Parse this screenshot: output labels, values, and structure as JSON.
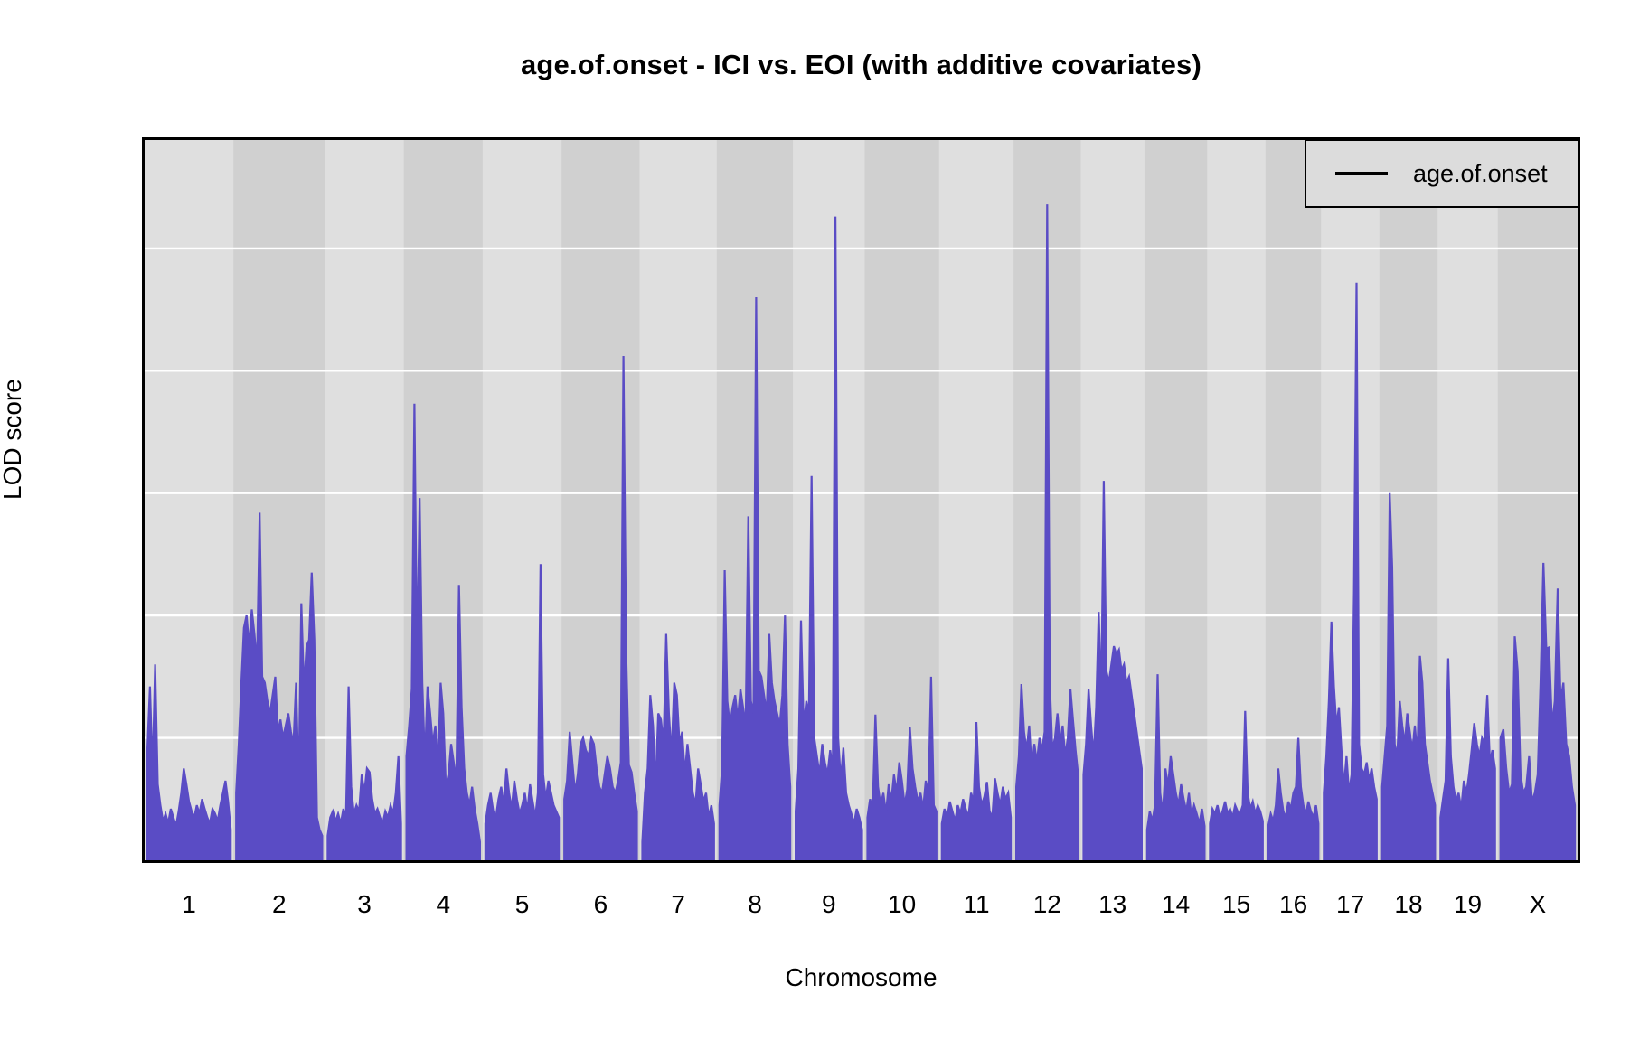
{
  "title": "age.of.onset - ICI vs. EOI (with additive covariates)",
  "legend": {
    "label": "age.of.onset"
  },
  "axes": {
    "y_label": "LOD score",
    "x_label": "Chromosome",
    "y_ticks": [
      "0",
      "1",
      "2",
      "3",
      "4",
      "5"
    ]
  },
  "colors": {
    "series": "#5a4cc5",
    "band_light": "#dfdfdf",
    "band_dark": "#d0d0d0",
    "gridline": "#ffffff",
    "plot_border": "#000000",
    "legend_bg": "#dcdcdc",
    "text": "#000000"
  },
  "chart_data": {
    "type": "line",
    "title": "age.of.onset - ICI vs. EOI (with additive covariates)",
    "xlabel": "Chromosome",
    "ylabel": "LOD score",
    "ylim": [
      0,
      5.885
    ],
    "y_gridlines": [
      1,
      2,
      3,
      4,
      5
    ],
    "grid": "horizontal white lines on alternating gray chromosome bands",
    "legend_position": "top-right",
    "series_name": "age.of.onset",
    "chromosomes": [
      {
        "name": "1",
        "rel_width": 99,
        "lod": [
          0.9,
          1.42,
          0.7,
          1.6,
          0.62,
          0.45,
          0.32,
          0.38,
          0.3,
          0.42,
          0.35,
          0.28,
          0.4,
          0.55,
          0.75,
          0.62,
          0.48,
          0.4,
          0.35,
          0.45,
          0.38,
          0.5,
          0.42,
          0.35,
          0.3,
          0.42,
          0.38,
          0.32,
          0.45,
          0.55,
          0.65,
          0.48,
          0.25
        ]
      },
      {
        "name": "2",
        "rel_width": 102,
        "lod": [
          0.55,
          0.95,
          1.45,
          1.9,
          2.0,
          1.75,
          2.05,
          1.85,
          1.6,
          2.84,
          1.5,
          1.45,
          1.3,
          1.2,
          1.35,
          1.5,
          1.05,
          1.15,
          1.0,
          1.1,
          1.2,
          1.05,
          0.95,
          1.45,
          0.6,
          2.1,
          1.4,
          1.75,
          1.8,
          2.35,
          1.8,
          0.35,
          0.25,
          0.2
        ]
      },
      {
        "name": "3",
        "rel_width": 88,
        "lod": [
          0.2,
          0.35,
          0.4,
          0.32,
          0.38,
          0.3,
          0.42,
          0.35,
          1.42,
          0.6,
          0.38,
          0.45,
          0.4,
          0.7,
          0.55,
          0.75,
          0.72,
          0.5,
          0.38,
          0.42,
          0.35,
          0.3,
          0.4,
          0.35,
          0.45,
          0.38,
          0.55,
          0.85,
          0.3
        ]
      },
      {
        "name": "4",
        "rel_width": 88,
        "lod": [
          0.85,
          1.1,
          1.4,
          3.73,
          1.6,
          2.96,
          1.45,
          0.8,
          1.42,
          1.2,
          0.95,
          1.1,
          0.75,
          1.45,
          1.2,
          0.6,
          0.7,
          0.95,
          0.8,
          0.65,
          2.25,
          1.25,
          0.75,
          0.55,
          0.45,
          0.6,
          0.42,
          0.3,
          0.15
        ]
      },
      {
        "name": "5",
        "rel_width": 88,
        "lod": [
          0.3,
          0.45,
          0.55,
          0.4,
          0.35,
          0.5,
          0.6,
          0.45,
          0.75,
          0.55,
          0.42,
          0.65,
          0.5,
          0.38,
          0.45,
          0.55,
          0.4,
          0.62,
          0.48,
          0.35,
          0.55,
          2.42,
          0.7,
          0.5,
          0.65,
          0.55,
          0.45,
          0.4,
          0.35
        ]
      },
      {
        "name": "6",
        "rel_width": 87,
        "lod": [
          0.5,
          0.65,
          1.05,
          0.8,
          0.55,
          0.7,
          0.95,
          1.0,
          0.9,
          0.85,
          1.0,
          0.95,
          0.75,
          0.6,
          0.55,
          0.7,
          0.85,
          0.75,
          0.6,
          0.55,
          0.65,
          0.8,
          4.12,
          1.7,
          0.78,
          0.72,
          0.55,
          0.4
        ]
      },
      {
        "name": "7",
        "rel_width": 86,
        "lod": [
          0.15,
          0.55,
          0.75,
          1.35,
          1.1,
          0.6,
          1.2,
          1.15,
          0.95,
          1.85,
          1.2,
          0.85,
          1.45,
          1.35,
          0.95,
          1.05,
          0.7,
          0.95,
          0.75,
          0.55,
          0.45,
          0.75,
          0.62,
          0.48,
          0.55,
          0.35,
          0.45,
          0.3
        ]
      },
      {
        "name": "8",
        "rel_width": 85,
        "lod": [
          0.45,
          0.75,
          2.37,
          1.3,
          1.1,
          1.25,
          1.35,
          1.15,
          1.4,
          1.25,
          1.1,
          2.81,
          1.3,
          1.2,
          4.6,
          1.55,
          1.5,
          1.35,
          1.2,
          1.85,
          1.45,
          1.3,
          1.2,
          1.1,
          1.35,
          2.0,
          0.95,
          0.6
        ]
      },
      {
        "name": "9",
        "rel_width": 80,
        "lod": [
          0.4,
          0.75,
          1.96,
          1.1,
          1.3,
          1.2,
          3.14,
          1.0,
          0.85,
          0.7,
          0.95,
          0.8,
          0.7,
          0.9,
          0.75,
          5.26,
          1.0,
          0.65,
          0.92,
          0.55,
          0.45,
          0.38,
          0.3,
          0.42,
          0.35,
          0.25
        ]
      },
      {
        "name": "10",
        "rel_width": 83,
        "lod": [
          0.35,
          0.5,
          0.42,
          1.19,
          0.6,
          0.45,
          0.55,
          0.38,
          0.62,
          0.48,
          0.7,
          0.55,
          0.8,
          0.65,
          0.45,
          0.58,
          1.09,
          0.75,
          0.6,
          0.48,
          0.55,
          0.42,
          0.65,
          0.55,
          1.5,
          0.45,
          0.4
        ]
      },
      {
        "name": "11",
        "rel_width": 83,
        "lod": [
          0.3,
          0.42,
          0.35,
          0.48,
          0.4,
          0.32,
          0.45,
          0.38,
          0.5,
          0.42,
          0.35,
          0.55,
          0.48,
          1.13,
          0.6,
          0.45,
          0.52,
          0.64,
          0.4,
          0.35,
          0.67,
          0.55,
          0.45,
          0.6,
          0.5,
          0.55,
          0.35
        ]
      },
      {
        "name": "12",
        "rel_width": 75,
        "lod": [
          0.6,
          0.85,
          1.44,
          1.05,
          0.9,
          1.1,
          0.75,
          0.95,
          0.8,
          1.0,
          0.9,
          1.05,
          5.36,
          1.45,
          0.9,
          1.0,
          1.2,
          0.95,
          1.1,
          0.85,
          1.0,
          1.4,
          1.15,
          0.9,
          0.7
        ]
      },
      {
        "name": "13",
        "rel_width": 71,
        "lod": [
          0.7,
          0.95,
          1.4,
          1.1,
          0.85,
          1.25,
          2.03,
          1.3,
          3.1,
          1.55,
          1.45,
          1.6,
          1.75,
          1.68,
          1.72,
          1.55,
          1.6,
          1.45,
          1.5,
          1.35,
          1.2,
          1.05,
          0.9,
          0.75
        ]
      },
      {
        "name": "14",
        "rel_width": 70,
        "lod": [
          0.25,
          0.4,
          0.32,
          0.45,
          1.52,
          0.55,
          0.38,
          0.75,
          0.6,
          0.85,
          0.7,
          0.55,
          0.45,
          0.62,
          0.5,
          0.4,
          0.55,
          0.35,
          0.45,
          0.38,
          0.3,
          0.42,
          0.28
        ]
      },
      {
        "name": "15",
        "rel_width": 65,
        "lod": [
          0.3,
          0.42,
          0.38,
          0.45,
          0.35,
          0.4,
          0.48,
          0.38,
          0.42,
          0.35,
          0.45,
          0.4,
          0.38,
          0.45,
          1.22,
          0.55,
          0.42,
          0.48,
          0.38,
          0.45,
          0.4,
          0.32
        ]
      },
      {
        "name": "16",
        "rel_width": 62,
        "lod": [
          0.28,
          0.38,
          0.32,
          0.45,
          0.75,
          0.55,
          0.4,
          0.35,
          0.48,
          0.42,
          0.55,
          0.6,
          1.0,
          0.6,
          0.45,
          0.38,
          0.48,
          0.4,
          0.35,
          0.45,
          0.3
        ]
      },
      {
        "name": "17",
        "rel_width": 65,
        "lod": [
          0.55,
          0.85,
          1.3,
          1.95,
          1.42,
          1.1,
          1.25,
          0.9,
          0.6,
          0.85,
          0.55,
          0.7,
          2.2,
          4.72,
          0.95,
          0.75,
          0.7,
          0.8,
          0.65,
          0.75,
          0.6,
          0.5
        ]
      },
      {
        "name": "18",
        "rel_width": 65,
        "lod": [
          0.6,
          0.85,
          1.1,
          3.0,
          2.4,
          0.95,
          0.85,
          1.3,
          1.1,
          0.95,
          1.2,
          1.05,
          0.9,
          1.1,
          0.85,
          1.67,
          1.45,
          0.95,
          0.8,
          0.65,
          0.55,
          0.45
        ]
      },
      {
        "name": "19",
        "rel_width": 67,
        "lod": [
          0.35,
          0.5,
          0.65,
          1.65,
          0.85,
          0.6,
          0.48,
          0.55,
          0.42,
          0.65,
          0.55,
          0.7,
          0.9,
          1.12,
          0.95,
          0.85,
          1.0,
          0.95,
          1.35,
          0.8,
          0.9,
          0.75
        ]
      },
      {
        "name": "X",
        "rel_width": 89,
        "lod": [
          1.0,
          1.07,
          0.75,
          0.55,
          0.62,
          1.83,
          1.55,
          0.7,
          0.55,
          0.6,
          0.85,
          0.48,
          0.55,
          0.7,
          1.45,
          2.43,
          1.73,
          1.74,
          1.1,
          1.3,
          2.22,
          1.3,
          1.45,
          0.95,
          0.85,
          0.6,
          0.45
        ]
      }
    ]
  }
}
